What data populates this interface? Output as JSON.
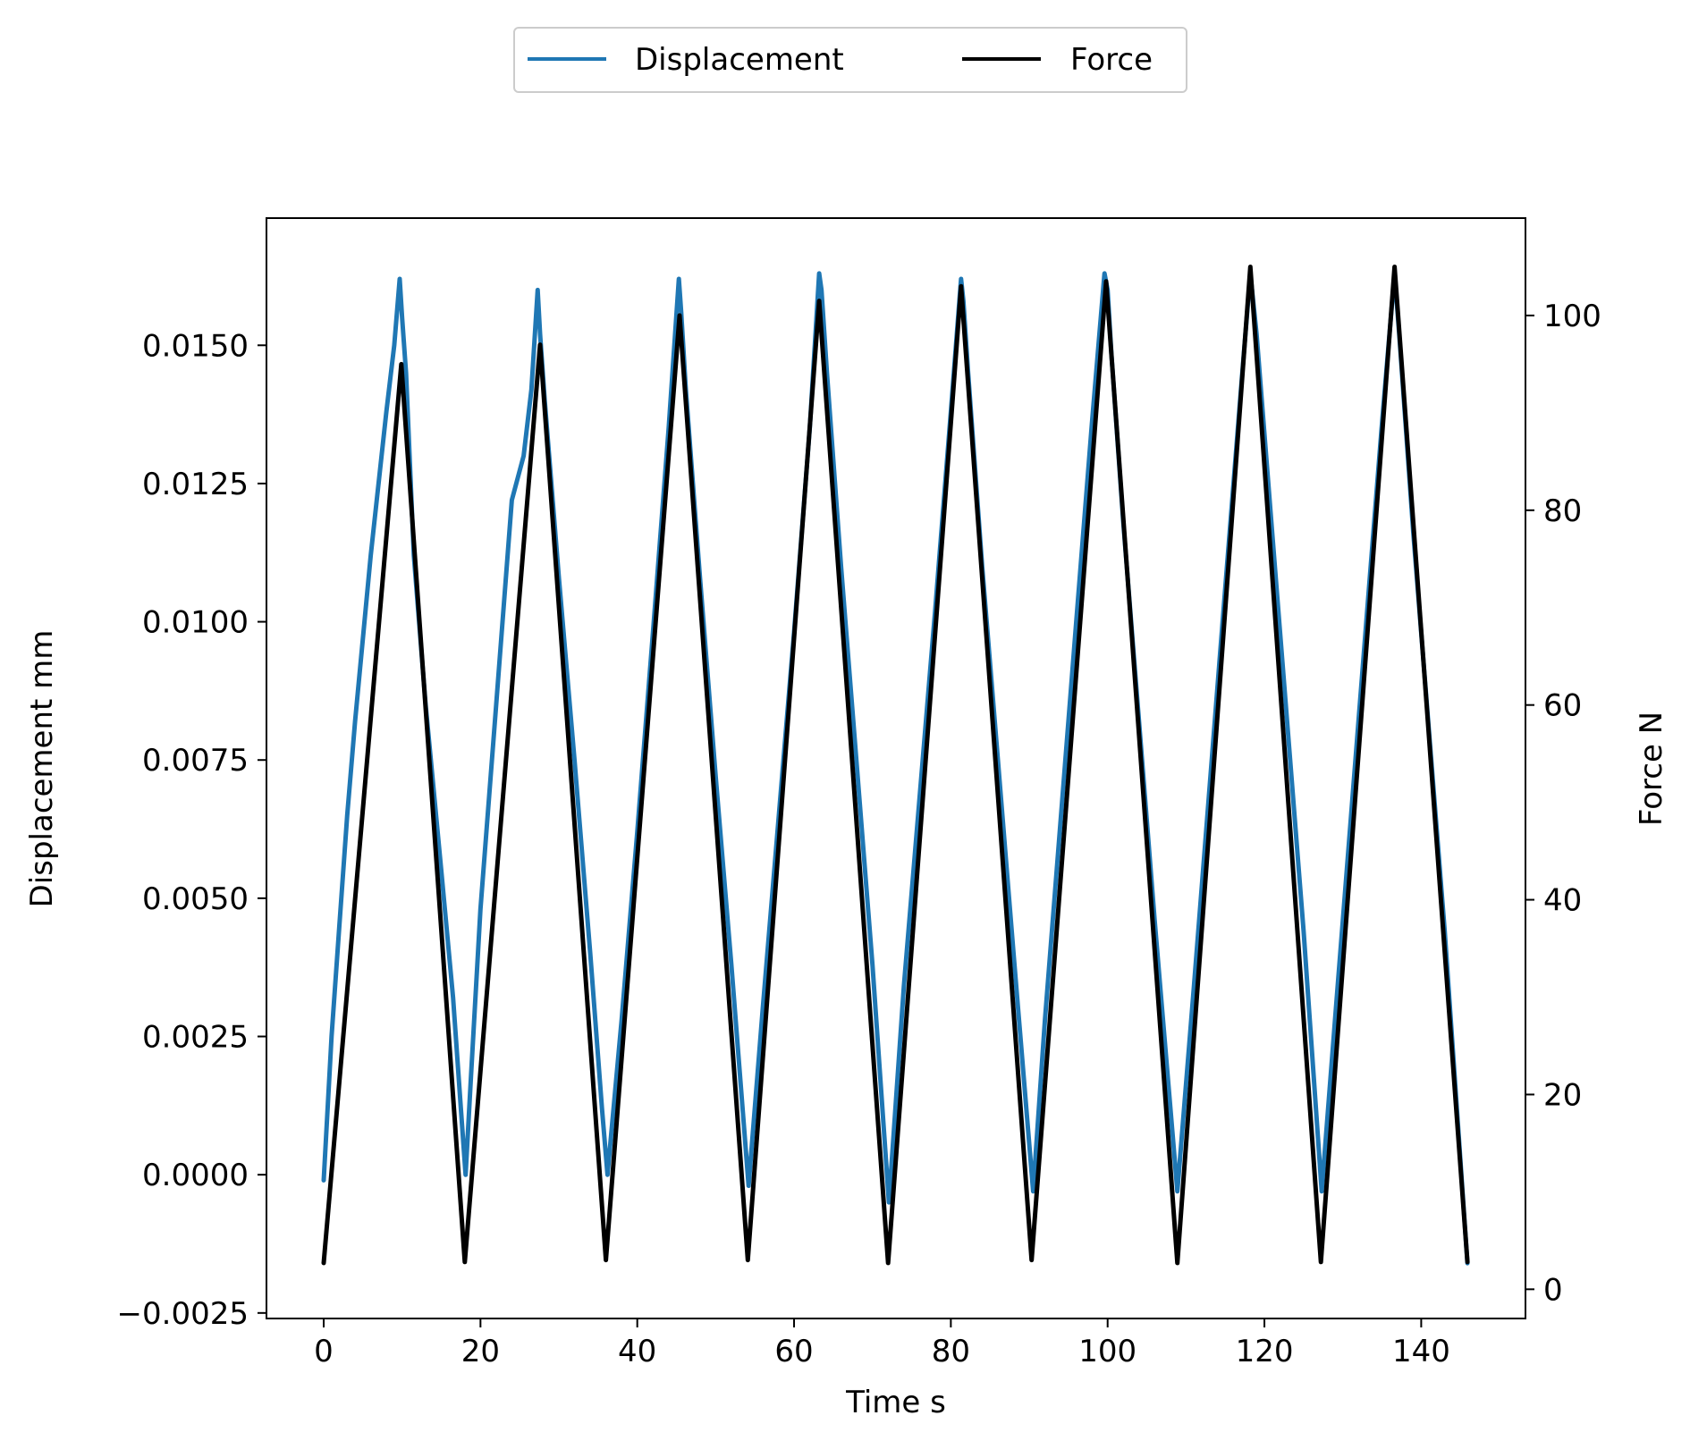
{
  "chart_data": {
    "type": "line",
    "title": "",
    "xlabel": "Time s",
    "ylabel_left": "Displacement mm",
    "ylabel_right": "Force N",
    "xlim": [
      -7.3,
      153.3
    ],
    "ylim_left": [
      -0.0026,
      0.0173
    ],
    "ylim_right": [
      -3.0,
      110.0
    ],
    "x_ticks": [
      0,
      20,
      40,
      60,
      80,
      100,
      120,
      140
    ],
    "x_tick_labels": [
      "0",
      "20",
      "40",
      "60",
      "80",
      "100",
      "120",
      "140"
    ],
    "y_left_ticks": [
      -0.0025,
      0.0,
      0.0025,
      0.005,
      0.0075,
      0.01,
      0.0125,
      0.015
    ],
    "y_left_tick_labels": [
      "−0.0025",
      "0.0000",
      "0.0025",
      "0.0050",
      "0.0075",
      "0.0100",
      "0.0125",
      "0.0150"
    ],
    "y_right_ticks": [
      0,
      20,
      40,
      60,
      80,
      100
    ],
    "y_right_tick_labels": [
      "0",
      "20",
      "40",
      "60",
      "80",
      "100"
    ],
    "grid": false,
    "legend": {
      "placement": "top-center, above plot",
      "ncol": 2
    },
    "series": [
      {
        "name": "Displacement",
        "axis": "left",
        "color": "#1f77b4",
        "x": [
          0.0,
          1.0,
          2.0,
          3.0,
          4.0,
          6.0,
          8.0,
          9.0,
          9.7,
          10.0,
          10.5,
          11.5,
          13.0,
          15.0,
          16.5,
          17.5,
          18.1,
          18.8,
          20.0,
          22.0,
          24.0,
          25.5,
          26.5,
          27.3,
          27.6,
          28.2,
          30.0,
          32.0,
          34.0,
          35.5,
          36.2,
          38.0,
          40.0,
          42.0,
          44.0,
          45.3,
          45.6,
          46.2,
          48.0,
          50.0,
          52.0,
          54.2,
          56.0,
          58.0,
          60.0,
          62.0,
          63.2,
          63.5,
          64.2,
          66.0,
          68.0,
          70.0,
          72.1,
          74.0,
          76.0,
          78.0,
          80.0,
          81.3,
          81.6,
          82.2,
          84.0,
          86.0,
          88.0,
          90.5,
          92.0,
          94.0,
          96.0,
          98.0,
          99.6,
          100.0,
          100.5,
          102.0,
          104.0,
          106.0,
          108.9,
          111.0,
          113.0,
          115.0,
          117.0,
          118.2,
          119.0,
          121.0,
          123.0,
          125.0,
          127.3,
          129.0,
          131.0,
          133.0,
          135.0,
          136.6,
          137.2,
          139.0,
          141.0,
          143.0,
          145.9
        ],
        "y": [
          -0.0001,
          0.0025,
          0.0045,
          0.0065,
          0.0082,
          0.0112,
          0.0138,
          0.015,
          0.0162,
          0.0155,
          0.0145,
          0.0112,
          0.0085,
          0.0055,
          0.0032,
          0.0012,
          0.0,
          0.0018,
          0.0048,
          0.0085,
          0.0122,
          0.013,
          0.0142,
          0.016,
          0.0152,
          0.014,
          0.0108,
          0.0075,
          0.004,
          0.0012,
          0.0,
          0.0028,
          0.0062,
          0.0098,
          0.0135,
          0.0162,
          0.0156,
          0.0142,
          0.0108,
          0.0072,
          0.0038,
          -0.0002,
          0.003,
          0.0064,
          0.0098,
          0.0135,
          0.0163,
          0.016,
          0.0145,
          0.011,
          0.0074,
          0.0038,
          -0.0005,
          0.0034,
          0.0068,
          0.0102,
          0.0138,
          0.0162,
          0.0158,
          0.0145,
          0.011,
          0.0075,
          0.004,
          -0.0003,
          0.0028,
          0.0064,
          0.01,
          0.0136,
          0.0163,
          0.016,
          0.0148,
          0.0118,
          0.0082,
          0.0046,
          -0.0003,
          0.0034,
          0.007,
          0.0106,
          0.0142,
          0.0163,
          0.0152,
          0.0116,
          0.008,
          0.0044,
          -0.0003,
          0.0028,
          0.0064,
          0.01,
          0.0136,
          0.0163,
          0.0152,
          0.0116,
          0.008,
          0.0044,
          -0.0016
        ]
      },
      {
        "name": "Force",
        "axis": "right",
        "color": "#000000",
        "x": [
          0.0,
          9.9,
          18.0,
          27.6,
          36.0,
          45.4,
          54.1,
          63.2,
          72.0,
          81.3,
          90.3,
          99.8,
          108.9,
          118.2,
          127.2,
          136.6,
          145.9
        ],
        "y": [
          2.7,
          95.0,
          2.8,
          97.0,
          3.0,
          100.0,
          3.0,
          101.5,
          2.7,
          103.0,
          3.0,
          103.5,
          2.7,
          105.0,
          2.8,
          105.0,
          2.8
        ]
      }
    ]
  }
}
